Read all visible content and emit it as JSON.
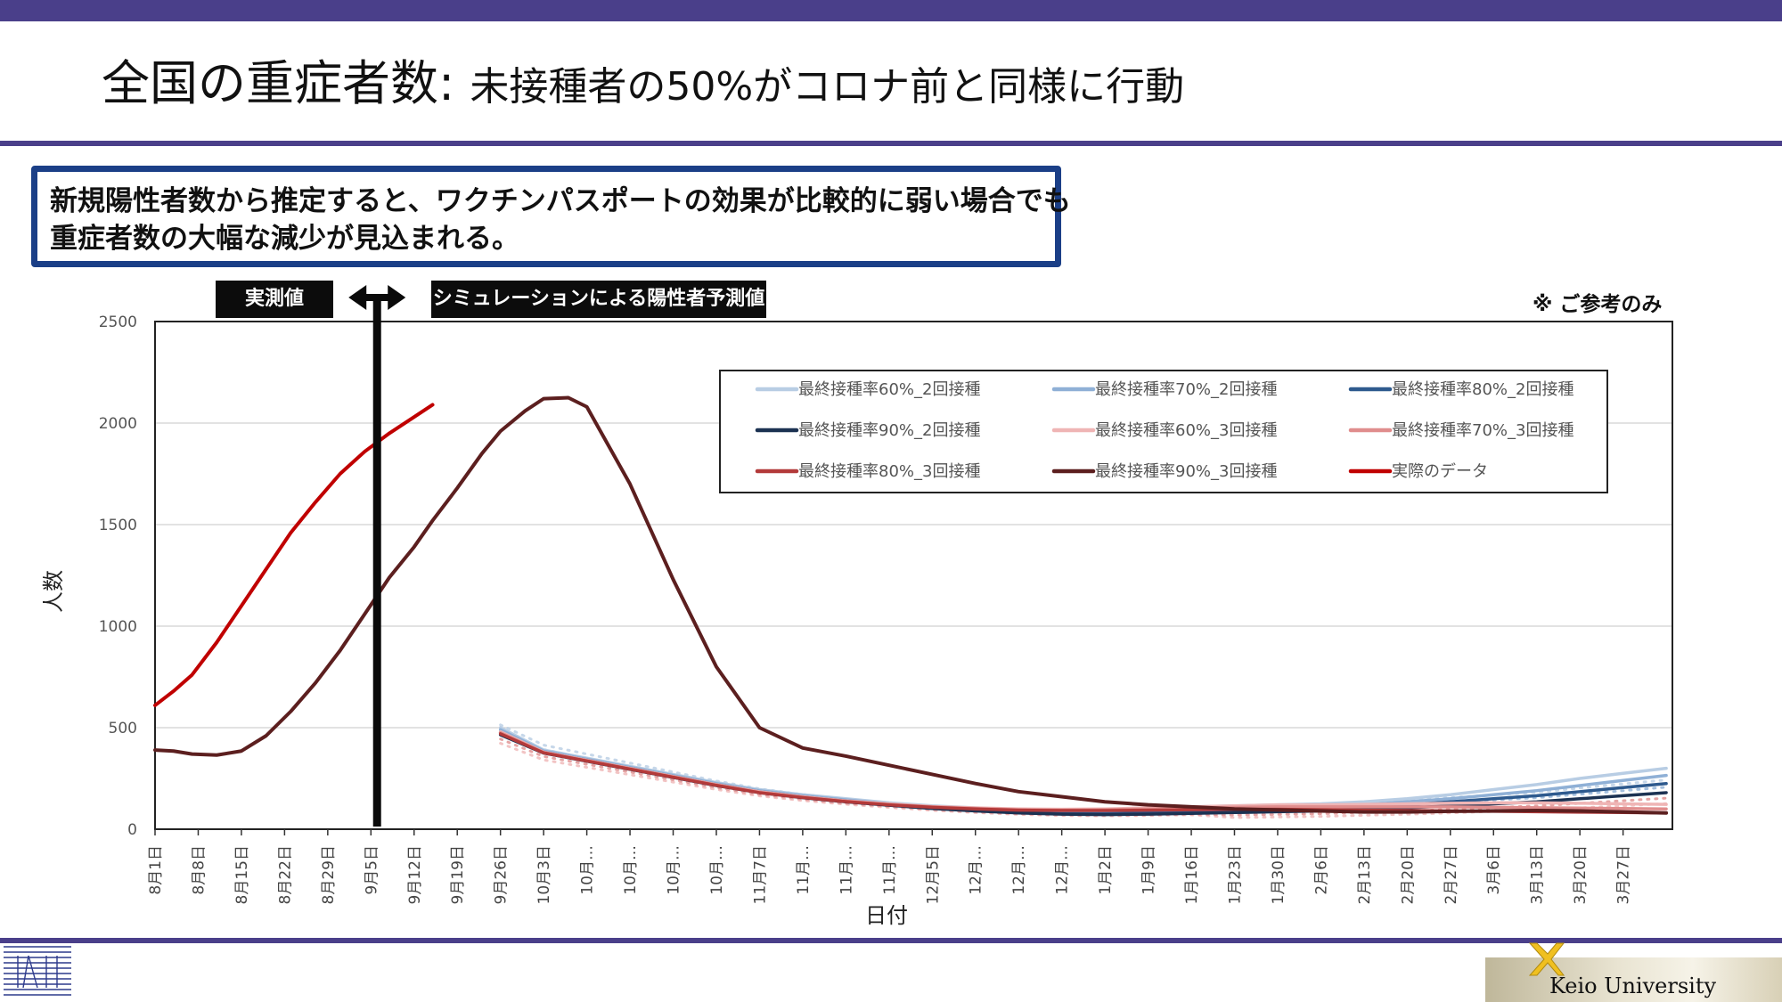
{
  "slide": {
    "title_main": "全国の重症者数: ",
    "title_sub": "未接種者の50%がコロナ前と同様に行動",
    "callout_line1": "新規陽性者数から推定すると、ワクチンパスポートの効果が比較的に弱い場合でも",
    "callout_line2": "重症者数の大幅な減少が見込まれる。",
    "tag_actual": "実測値",
    "tag_simulation": "シミュレーションによる陽性者予測値",
    "note": "※ ご参考のみ",
    "footer_logo_text": "Keio University"
  },
  "chart_data": {
    "type": "line",
    "xlabel": "日付",
    "ylabel": "人数",
    "ylim": [
      0,
      2500
    ],
    "yticks": [
      0,
      500,
      1000,
      1500,
      2000,
      2500
    ],
    "grid": true,
    "legend_position": "top-right (inside plot)",
    "x_ticks": [
      "8月1日",
      "8月8日",
      "8月15日",
      "8月22日",
      "8月29日",
      "9月5日",
      "9月12日",
      "9月19日",
      "9月26日",
      "10月3日",
      "10月…",
      "10月…",
      "10月…",
      "10月…",
      "11月7日",
      "11月…",
      "11月…",
      "11月…",
      "12月5日",
      "12月…",
      "12月…",
      "12月…",
      "1月2日",
      "1月9日",
      "1月16日",
      "1月23日",
      "1月30日",
      "2月6日",
      "2月13日",
      "2月20日",
      "2月27日",
      "3月6日",
      "3月13日",
      "3月20日",
      "3月27日"
    ],
    "series": [
      {
        "name": "最終接種率60%_2回接種",
        "color": "#b8cde4",
        "dashed": false,
        "x": [
          56,
          63,
          70,
          77,
          84,
          91,
          98,
          105,
          112,
          119,
          126,
          133,
          140,
          147,
          154,
          161,
          168,
          175,
          182,
          189,
          196,
          203,
          210,
          217,
          224,
          231,
          238,
          245
        ],
        "values": [
          500,
          390,
          350,
          310,
          270,
          230,
          195,
          170,
          150,
          130,
          115,
          105,
          95,
          90,
          95,
          105,
          110,
          115,
          120,
          125,
          135,
          150,
          170,
          195,
          220,
          250,
          275,
          300
        ]
      },
      {
        "name": "最終接種率70%_2回接種",
        "color": "#8fb0d6",
        "dashed": false,
        "x": [
          56,
          63,
          70,
          77,
          84,
          91,
          98,
          105,
          112,
          119,
          126,
          133,
          140,
          147,
          154,
          161,
          168,
          175,
          182,
          189,
          196,
          203,
          210,
          217,
          224,
          231,
          238,
          245
        ],
        "values": [
          490,
          385,
          345,
          305,
          265,
          225,
          190,
          165,
          145,
          125,
          110,
          98,
          88,
          82,
          85,
          90,
          95,
          100,
          105,
          110,
          120,
          135,
          150,
          170,
          190,
          215,
          240,
          265
        ]
      },
      {
        "name": "最終接種率80%_2回接種",
        "color": "#2e5a8e",
        "dashed": false,
        "x": [
          56,
          63,
          70,
          77,
          84,
          91,
          98,
          105,
          112,
          119,
          126,
          133,
          140,
          147,
          154,
          161,
          168,
          175,
          182,
          189,
          196,
          203,
          210,
          217,
          224,
          231,
          238,
          245
        ],
        "values": [
          475,
          380,
          340,
          300,
          260,
          220,
          185,
          160,
          140,
          120,
          105,
          92,
          82,
          76,
          76,
          80,
          85,
          90,
          95,
          100,
          110,
          120,
          135,
          150,
          165,
          185,
          205,
          225
        ]
      },
      {
        "name": "最終接種率90%_2回接種",
        "color": "#1c3252",
        "dashed": false,
        "x": [
          56,
          63,
          70,
          77,
          84,
          91,
          98,
          105,
          112,
          119,
          126,
          133,
          140,
          147,
          154,
          161,
          168,
          175,
          182,
          189,
          196,
          203,
          210,
          217,
          224,
          231,
          238,
          245
        ],
        "values": [
          465,
          375,
          335,
          295,
          255,
          215,
          180,
          155,
          135,
          118,
          102,
          90,
          80,
          74,
          72,
          74,
          78,
          82,
          86,
          90,
          98,
          105,
          115,
          125,
          135,
          150,
          165,
          180
        ]
      },
      {
        "name": "最終接種率60%_3回接種",
        "color": "#efb5b5",
        "dashed": false,
        "x": [
          56,
          63,
          70,
          77,
          84,
          91,
          98,
          105,
          112,
          119,
          126,
          133,
          140,
          147,
          154,
          161,
          168,
          175,
          182,
          189,
          196,
          203,
          210,
          217,
          224,
          231,
          238,
          245
        ],
        "values": [
          480,
          380,
          340,
          300,
          260,
          220,
          185,
          160,
          140,
          125,
          112,
          105,
          100,
          98,
          100,
          105,
          110,
          115,
          120,
          120,
          122,
          125,
          128,
          130,
          130,
          128,
          125,
          122
        ]
      },
      {
        "name": "最終接種率70%_3回接種",
        "color": "#e08d8d",
        "dashed": false,
        "x": [
          56,
          63,
          70,
          77,
          84,
          91,
          98,
          105,
          112,
          119,
          126,
          133,
          140,
          147,
          154,
          161,
          168,
          175,
          182,
          189,
          196,
          203,
          210,
          217,
          224,
          231,
          238,
          245
        ],
        "values": [
          475,
          378,
          338,
          298,
          258,
          218,
          182,
          158,
          138,
          122,
          110,
          102,
          96,
          94,
          96,
          100,
          104,
          108,
          110,
          110,
          110,
          110,
          110,
          108,
          106,
          104,
          102,
          100
        ]
      },
      {
        "name": "最終接種率80%_3回接種",
        "color": "#b33a3a",
        "dashed": false,
        "x": [
          56,
          63,
          70,
          77,
          84,
          91,
          98,
          105,
          112,
          119,
          126,
          133,
          140,
          147,
          154,
          161,
          168,
          175,
          182,
          189,
          196,
          203,
          210,
          217,
          224,
          231,
          238,
          245
        ],
        "values": [
          470,
          376,
          336,
          296,
          256,
          216,
          180,
          156,
          136,
          120,
          108,
          100,
          94,
          92,
          92,
          94,
          96,
          98,
          98,
          96,
          94,
          92,
          90,
          88,
          86,
          84,
          82,
          80
        ]
      },
      {
        "name": "最終接種率90%_3回接種",
        "color": "#5c1f1f",
        "dashed": false,
        "x": [
          0,
          3,
          6,
          10,
          14,
          18,
          22,
          26,
          30,
          34,
          38,
          42,
          45,
          49,
          53,
          56,
          60,
          63,
          67,
          70,
          77,
          84,
          91,
          98,
          105,
          112,
          119,
          126,
          133,
          140,
          147,
          154,
          161,
          168,
          175,
          182,
          189,
          196,
          203,
          210,
          217,
          224,
          231,
          238,
          245
        ],
        "values": [
          390,
          385,
          370,
          365,
          385,
          460,
          580,
          720,
          880,
          1060,
          1240,
          1390,
          1520,
          1680,
          1850,
          1960,
          2060,
          2120,
          2125,
          2080,
          1700,
          1230,
          800,
          500,
          400,
          360,
          315,
          270,
          225,
          185,
          160,
          135,
          120,
          110,
          100,
          95,
          90,
          85,
          85,
          88,
          90,
          92,
          90,
          85,
          80
        ]
      },
      {
        "name": "実際のデータ",
        "color": "#c00000",
        "dashed": false,
        "x": [
          0,
          3,
          6,
          10,
          14,
          18,
          22,
          26,
          30,
          34,
          38,
          42,
          45
        ],
        "values": [
          610,
          680,
          760,
          920,
          1100,
          1280,
          1460,
          1610,
          1750,
          1860,
          1950,
          2030,
          2090
        ]
      }
    ],
    "vertical_marker_x": 36
  }
}
